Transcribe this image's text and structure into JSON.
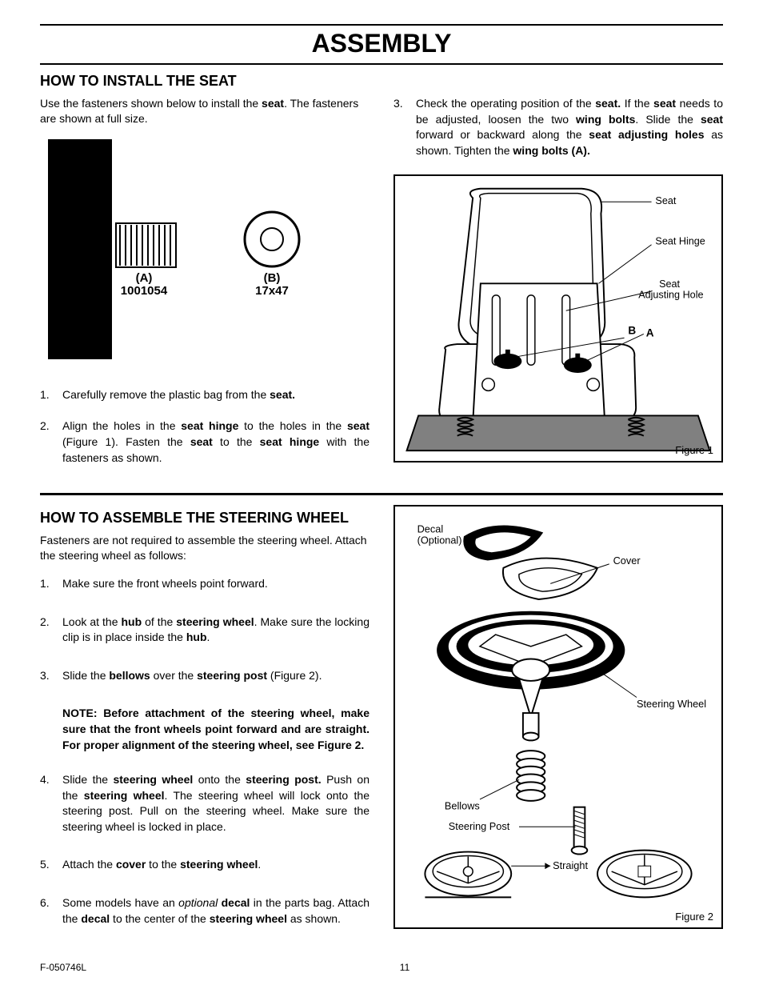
{
  "page": {
    "title": "ASSEMBLY",
    "footer_left": "F-050746L",
    "footer_center": "11"
  },
  "seat": {
    "heading": "HOW TO INSTALL THE SEAT",
    "intro_prefix": "Use the fasteners shown below to install the ",
    "intro_bold": "seat",
    "intro_suffix": ". The fasteners are shown at full size.",
    "fastener_a_label1": "(A)",
    "fastener_a_label2": "1001054",
    "fastener_b_label1": "(B)",
    "fastener_b_label2": "17x47",
    "step1": "Carefully remove the plastic bag from the <b>seat.</b>",
    "step2": "Align the holes in the <b>seat hinge</b> to the holes in the <b>seat</b> (Figure 1). Fasten the <b>seat</b> to the <b>seat hinge</b> with the fasteners as shown.",
    "step3": "Check the operating position of the <b>seat.</b> If the <b>seat</b> needs to be adjusted, loosen the two <b>wing bolts</b>. Slide the <b>seat</b> forward or backward along the <b>seat adjusting holes</b> as shown. Tighten the <b>wing bolts (A).</b>",
    "fig1": {
      "seat": "Seat",
      "hinge": "Seat Hinge",
      "adjhole": "Seat\nAdjusting Hole",
      "a": "A",
      "b": "B",
      "caption": "Figure 1"
    }
  },
  "wheel": {
    "heading": "HOW TO ASSEMBLE THE STEERING WHEEL",
    "intro": "Fasteners are not required to assemble the steering wheel. Attach the steering wheel as follows:",
    "step1": "Make sure the front wheels point forward.",
    "step2": "Look at the <b>hub</b> of the <b>steering wheel</b>. Make sure the locking clip is in place inside the <b>hub</b>.",
    "step3": "Slide the <b>bellows</b> over the <b>steering post</b> (Figure 2).",
    "note": "NOTE: Before attachment of the steering wheel, make sure that the front wheels point forward and are straight. For proper alignment of the steering wheel, see Figure 2.",
    "step4": "Slide the <b>steering wheel</b> onto the <b>steering post.</b> Push on the <b>steering wheel</b>. The steering wheel will lock onto the steering post. Pull on the steering wheel. Make sure the steering wheel is locked in place.",
    "step5": "Attach the <b>cover</b> to the <b>steering wheel</b>.",
    "step6": "Some models have an <em>optional</em> <b>decal</b> in the parts bag. Attach the <b>decal</b> to the center of the <b>steering wheel</b> as shown.",
    "fig2": {
      "decal": "Decal\n(Optional)",
      "cover": "Cover",
      "steering_wheel": "Steering Wheel",
      "bellows": "Bellows",
      "steering_post": "Steering Post",
      "straight": "Straight",
      "caption": "Figure 2"
    }
  },
  "colors": {
    "black": "#000000",
    "gray": "#808080",
    "white": "#ffffff"
  }
}
